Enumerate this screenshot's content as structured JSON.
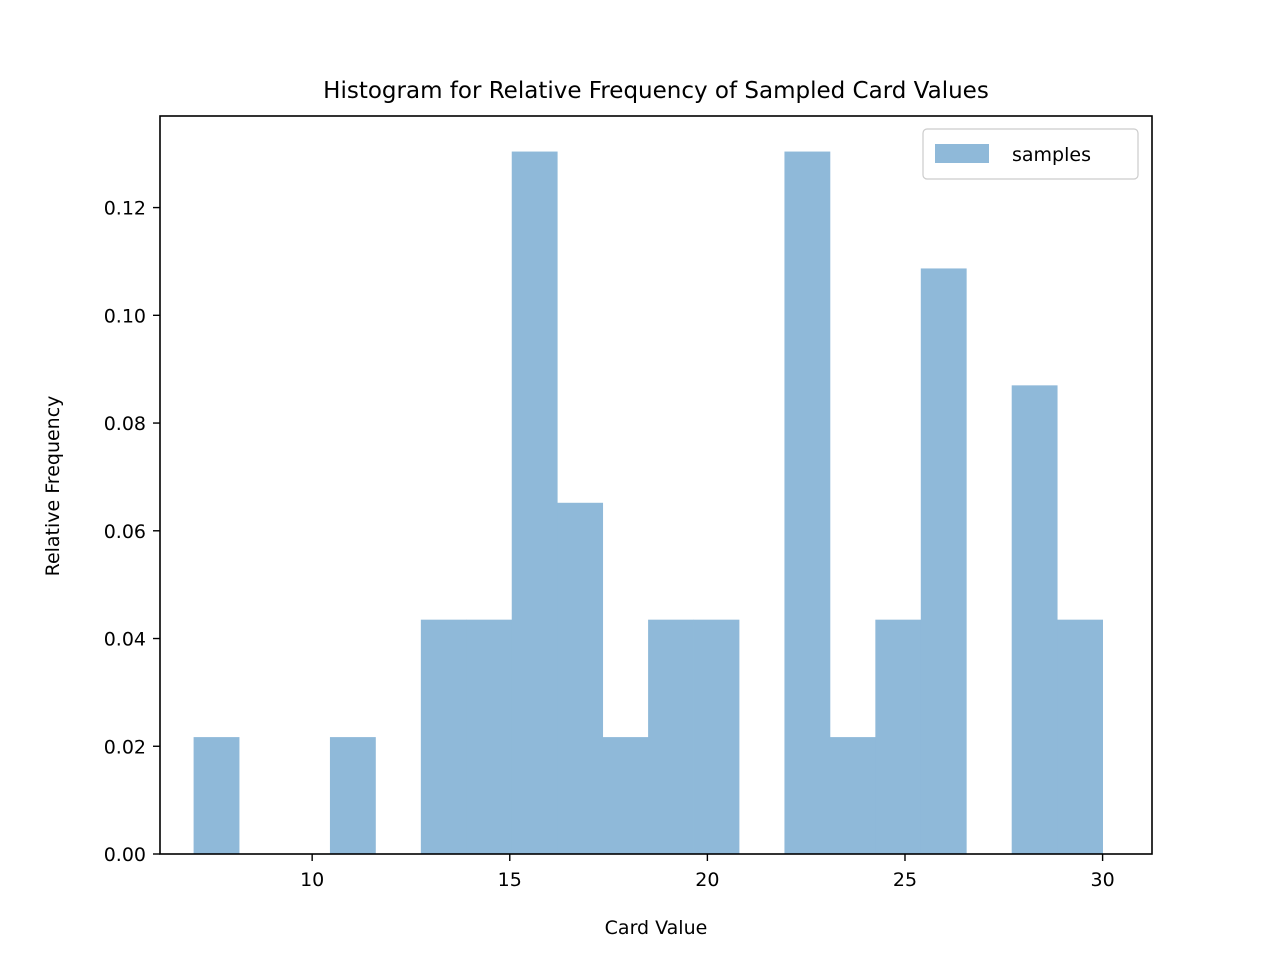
{
  "chart_data": {
    "type": "bar",
    "title": "Histogram for Relative Frequency of Sampled Card Values",
    "xlabel": "Card Value",
    "ylabel": "Relative Frequency",
    "xlim": [
      6.15,
      31.25
    ],
    "ylim": [
      0,
      0.137
    ],
    "xticks": [
      10,
      15,
      20,
      25,
      30
    ],
    "yticks": [
      0.0,
      0.02,
      0.04,
      0.06,
      0.08,
      0.1,
      0.12
    ],
    "ytick_labels": [
      "0.00",
      "0.02",
      "0.04",
      "0.06",
      "0.08",
      "0.10",
      "0.12"
    ],
    "bin_edges": [
      7.0,
      8.15,
      9.3,
      10.45,
      11.6,
      12.75,
      13.9,
      15.05,
      16.2,
      17.35,
      18.5,
      19.65,
      20.8,
      21.95,
      23.1,
      24.25,
      25.4,
      26.55,
      27.7,
      28.85,
      30.0
    ],
    "values": [
      0.0217,
      0,
      0,
      0.0217,
      0,
      0.0435,
      0.0435,
      0.1304,
      0.0652,
      0.0217,
      0.0435,
      0.0435,
      0,
      0.1304,
      0.0217,
      0.0435,
      0.1087,
      0,
      0.087,
      0.0435
    ],
    "series": [
      {
        "name": "samples",
        "color": "#8fb9d9"
      }
    ],
    "legend": {
      "location": "upper right",
      "label": "samples"
    },
    "grid": false
  }
}
